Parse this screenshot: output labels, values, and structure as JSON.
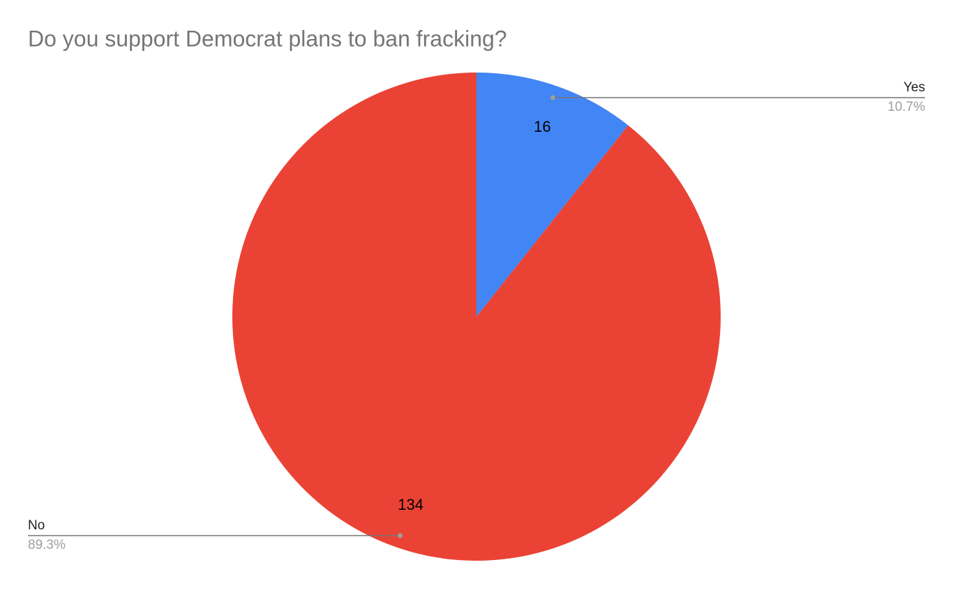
{
  "chart_data": {
    "type": "pie",
    "title": "Do you support Democrat plans to ban fracking?",
    "categories": [
      "Yes",
      "No"
    ],
    "values": [
      16,
      134
    ],
    "percent_labels": [
      "10.7%",
      "89.3%"
    ],
    "colors": [
      "#4285f4",
      "#ea4335"
    ]
  }
}
